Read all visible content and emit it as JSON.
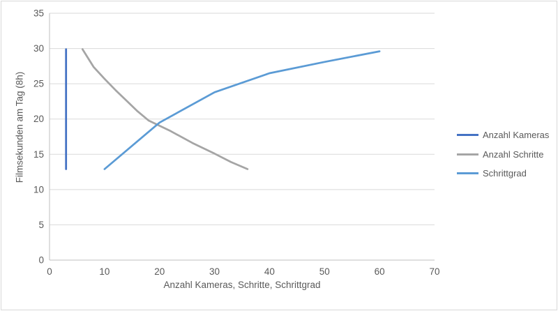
{
  "chart_data": {
    "type": "line",
    "title": "",
    "xlabel": "Anzahl Kameras, Schritte, Schrittgrad",
    "ylabel": "Filmsekunden am Tag (8h)",
    "xlim": [
      0,
      70
    ],
    "ylim": [
      0,
      35
    ],
    "x_ticks": [
      0,
      10,
      20,
      30,
      40,
      50,
      60,
      70
    ],
    "y_ticks": [
      0,
      5,
      10,
      15,
      20,
      25,
      30,
      35
    ],
    "grid": "horizontal",
    "legend_position": "right",
    "series": [
      {
        "name": "Anzahl Kameras",
        "color": "#4472C4",
        "points": [
          [
            3,
            12.9
          ],
          [
            3,
            29.9
          ]
        ]
      },
      {
        "name": "Anzahl Schritte",
        "color": "#A5A5A5",
        "points": [
          [
            6,
            29.9
          ],
          [
            8,
            27.4
          ],
          [
            10,
            25.7
          ],
          [
            12,
            24.1
          ],
          [
            14,
            22.6
          ],
          [
            16,
            21.1
          ],
          [
            18,
            19.8
          ],
          [
            22,
            18.3
          ],
          [
            26,
            16.6
          ],
          [
            30,
            15.1
          ],
          [
            33,
            13.9
          ],
          [
            36,
            12.9
          ]
        ]
      },
      {
        "name": "Schrittgrad",
        "color": "#5B9BD5",
        "points": [
          [
            10,
            12.9
          ],
          [
            20,
            19.5
          ],
          [
            30,
            23.8
          ],
          [
            40,
            26.5
          ],
          [
            50,
            28.1
          ],
          [
            60,
            29.6
          ]
        ]
      }
    ]
  },
  "style": {
    "gridline_color": "#D9D9D9",
    "axis_line_color": "#BFBFBF",
    "tick_label_color": "#595959",
    "frame_border_color": "#D9D9D9",
    "line_width": 2.75,
    "tick_font_size": 13.5
  }
}
